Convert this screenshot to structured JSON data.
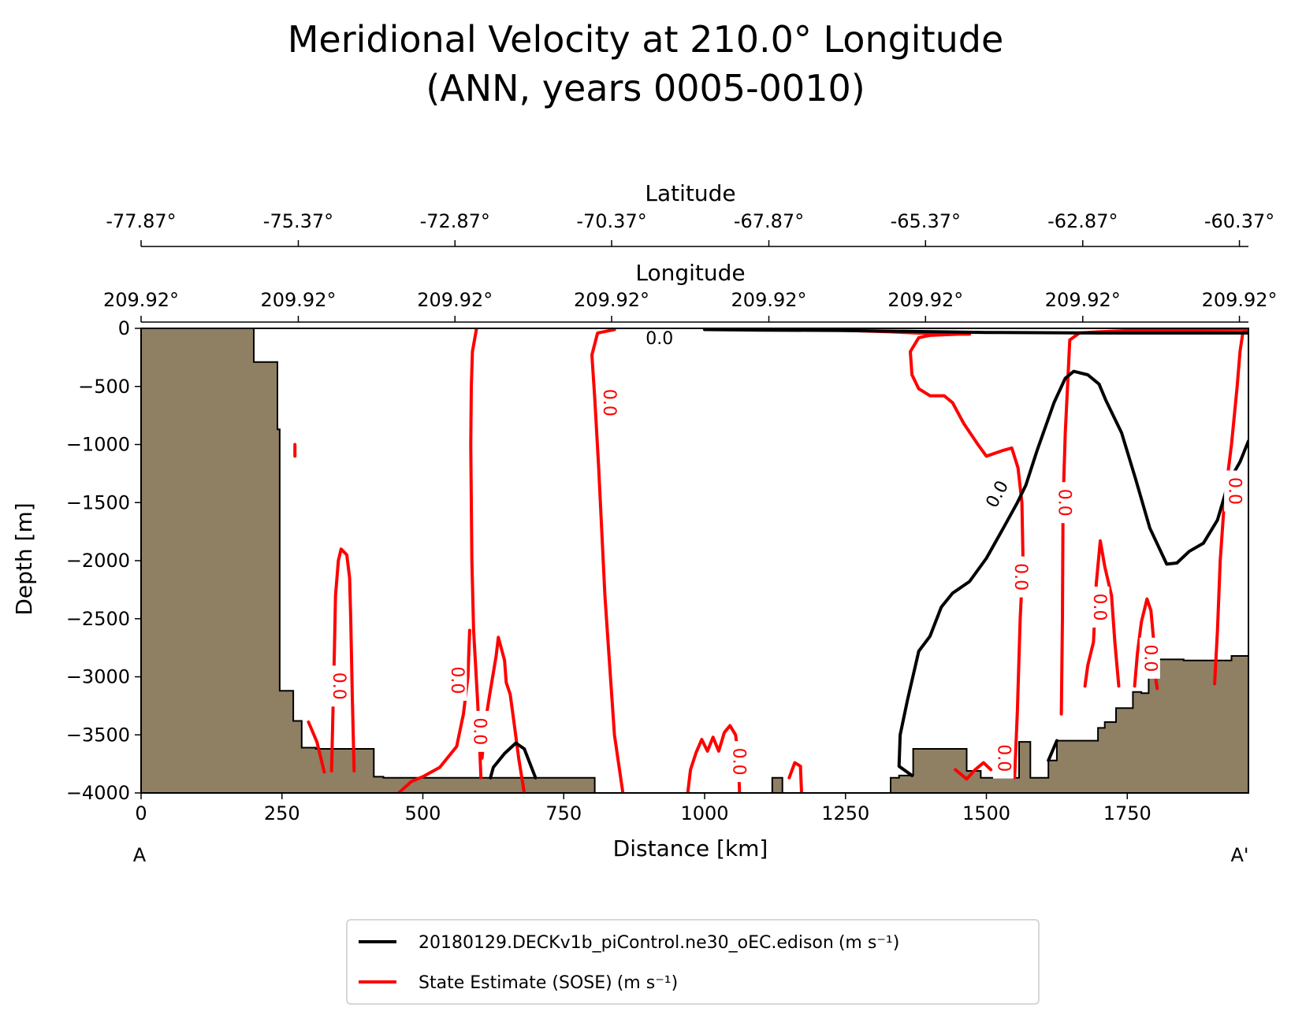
{
  "chart_data": {
    "type": "contour",
    "title_line1": "Meridional Velocity at 210.0° Longitude",
    "title_line2": "(ANN, years 0005-0010)",
    "xlabel": "Distance [km]",
    "ylabel": "Depth [m]",
    "xlim": [
      0,
      1965
    ],
    "ylim": [
      -4000,
      0
    ],
    "x_ticks": [
      0,
      250,
      500,
      750,
      1000,
      1250,
      1500,
      1750
    ],
    "y_ticks": [
      0,
      -500,
      -1000,
      -1500,
      -2000,
      -2500,
      -3000,
      -3500,
      -4000
    ],
    "y_tick_labels": [
      "0",
      "−500",
      "−1000",
      "−1500",
      "−2000",
      "−2500",
      "−3000",
      "−3500",
      "−4000"
    ],
    "section_start": "A",
    "section_end": "A'",
    "latitude_axis": {
      "label": "Latitude",
      "ticks": [
        "-77.87°",
        "-75.37°",
        "-72.87°",
        "-70.37°",
        "-67.87°",
        "-65.37°",
        "-62.87°",
        "-60.37°"
      ],
      "positions_km": [
        0,
        279,
        557,
        835,
        1114,
        1392,
        1671,
        1949
      ]
    },
    "longitude_axis": {
      "label": "Longitude",
      "ticks": [
        "209.92°",
        "209.92°",
        "209.92°",
        "209.92°",
        "209.92°",
        "209.92°",
        "209.92°",
        "209.92°"
      ],
      "positions_km": [
        0,
        279,
        557,
        835,
        1114,
        1392,
        1671,
        1949
      ]
    },
    "contour_level": "0.0",
    "contour_label": "0.0",
    "series": [
      {
        "name": "20180129.DECKv1b_piControl.ne30_oEC.edison",
        "units": "(m s⁻¹)",
        "color": "#000000"
      },
      {
        "name": "State Estimate (SOSE)",
        "units": "(m s⁻¹)",
        "color": "#ff0000"
      }
    ],
    "legend_position": "bottom-center",
    "bathymetry": {
      "color": "#8f7f63",
      "points": [
        [
          0,
          0
        ],
        [
          200,
          0
        ],
        [
          200,
          -290
        ],
        [
          242,
          -290
        ],
        [
          242,
          -870
        ],
        [
          246,
          -870
        ],
        [
          246,
          -3120
        ],
        [
          270,
          -3120
        ],
        [
          270,
          -3380
        ],
        [
          285,
          -3380
        ],
        [
          285,
          -3610
        ],
        [
          310,
          -3610
        ],
        [
          310,
          -3620
        ],
        [
          413,
          -3620
        ],
        [
          413,
          -3860
        ],
        [
          430,
          -3860
        ],
        [
          430,
          -3870
        ],
        [
          805,
          -3870
        ],
        [
          805,
          -4000
        ],
        [
          1120,
          -4000
        ],
        [
          1120,
          -3870
        ],
        [
          1138,
          -3870
        ],
        [
          1138,
          -4000
        ],
        [
          1330,
          -4000
        ],
        [
          1330,
          -3870
        ],
        [
          1345,
          -3870
        ],
        [
          1345,
          -3850
        ],
        [
          1370,
          -3850
        ],
        [
          1370,
          -3620
        ],
        [
          1465,
          -3620
        ],
        [
          1465,
          -3810
        ],
        [
          1490,
          -3810
        ],
        [
          1490,
          -3870
        ],
        [
          1558,
          -3870
        ],
        [
          1558,
          -3560
        ],
        [
          1578,
          -3560
        ],
        [
          1578,
          -3870
        ],
        [
          1610,
          -3870
        ],
        [
          1610,
          -3720
        ],
        [
          1625,
          -3720
        ],
        [
          1625,
          -3550
        ],
        [
          1698,
          -3550
        ],
        [
          1698,
          -3440
        ],
        [
          1710,
          -3440
        ],
        [
          1710,
          -3390
        ],
        [
          1730,
          -3390
        ],
        [
          1730,
          -3270
        ],
        [
          1760,
          -3270
        ],
        [
          1760,
          -3130
        ],
        [
          1775,
          -3130
        ],
        [
          1775,
          -3140
        ],
        [
          1788,
          -3140
        ],
        [
          1788,
          -2910
        ],
        [
          1800,
          -2910
        ],
        [
          1800,
          -2850
        ],
        [
          1850,
          -2850
        ],
        [
          1850,
          -2860
        ],
        [
          1935,
          -2860
        ],
        [
          1935,
          -2820
        ],
        [
          1965,
          -2820
        ],
        [
          1965,
          -4000
        ],
        [
          0,
          -4000
        ]
      ]
    },
    "black_contours": [
      [
        [
          1000,
          -10
        ],
        [
          1100,
          -15
        ],
        [
          1250,
          -18
        ],
        [
          1500,
          -35
        ],
        [
          1700,
          -40
        ],
        [
          1965,
          -40
        ]
      ],
      [
        [
          620,
          -3870
        ],
        [
          625,
          -3780
        ],
        [
          645,
          -3660
        ],
        [
          665,
          -3570
        ],
        [
          680,
          -3620
        ],
        [
          700,
          -3870
        ]
      ],
      [
        [
          1368,
          -3850
        ],
        [
          1345,
          -3770
        ],
        [
          1347,
          -3500
        ],
        [
          1360,
          -3200
        ],
        [
          1380,
          -2780
        ],
        [
          1400,
          -2650
        ],
        [
          1420,
          -2400
        ],
        [
          1440,
          -2280
        ],
        [
          1470,
          -2180
        ],
        [
          1500,
          -1980
        ],
        [
          1530,
          -1720
        ],
        [
          1555,
          -1500
        ],
        [
          1570,
          -1350
        ],
        [
          1590,
          -1050
        ],
        [
          1620,
          -640
        ],
        [
          1640,
          -430
        ],
        [
          1655,
          -370
        ],
        [
          1680,
          -400
        ],
        [
          1700,
          -480
        ],
        [
          1712,
          -620
        ],
        [
          1740,
          -900
        ],
        [
          1765,
          -1300
        ],
        [
          1790,
          -1720
        ],
        [
          1820,
          -2030
        ],
        [
          1838,
          -2020
        ],
        [
          1860,
          -1920
        ],
        [
          1885,
          -1850
        ],
        [
          1910,
          -1650
        ],
        [
          1930,
          -1320
        ],
        [
          1950,
          -1150
        ],
        [
          1965,
          -970
        ]
      ],
      [
        [
          1625,
          -3550
        ],
        [
          1610,
          -3720
        ]
      ]
    ],
    "red_contours": [
      [
        [
          603,
          -3870
        ],
        [
          600,
          -3500
        ],
        [
          597,
          -3200
        ],
        [
          590,
          -2600
        ],
        [
          587,
          -2000
        ],
        [
          585,
          -1000
        ],
        [
          586,
          -500
        ],
        [
          588,
          -200
        ],
        [
          595,
          -10
        ]
      ],
      [
        [
          840,
          -10
        ],
        [
          810,
          -40
        ],
        [
          800,
          -230
        ],
        [
          805,
          -600
        ],
        [
          812,
          -1200
        ],
        [
          818,
          -1800
        ],
        [
          823,
          -2300
        ],
        [
          830,
          -2800
        ],
        [
          840,
          -3500
        ],
        [
          855,
          -4000
        ]
      ],
      [
        [
          457,
          -4000
        ],
        [
          480,
          -3900
        ],
        [
          500,
          -3860
        ],
        [
          530,
          -3780
        ],
        [
          560,
          -3600
        ],
        [
          572,
          -3320
        ],
        [
          580,
          -3000
        ],
        [
          583,
          -2600
        ]
      ],
      [
        [
          605,
          -3700
        ],
        [
          610,
          -3420
        ],
        [
          618,
          -3170
        ],
        [
          630,
          -2820
        ],
        [
          634,
          -2660
        ],
        [
          645,
          -2860
        ],
        [
          648,
          -3050
        ],
        [
          655,
          -3150
        ],
        [
          662,
          -3400
        ],
        [
          670,
          -3700
        ],
        [
          680,
          -4000
        ]
      ],
      [
        [
          338,
          -3810
        ],
        [
          340,
          -3400
        ],
        [
          343,
          -2800
        ],
        [
          345,
          -2300
        ],
        [
          350,
          -2000
        ],
        [
          355,
          -1900
        ],
        [
          365,
          -1950
        ],
        [
          370,
          -2150
        ],
        [
          372,
          -2500
        ],
        [
          375,
          -3200
        ],
        [
          378,
          -3810
        ]
      ],
      [
        [
          970,
          -4000
        ],
        [
          975,
          -3800
        ],
        [
          985,
          -3650
        ],
        [
          995,
          -3540
        ],
        [
          1005,
          -3640
        ],
        [
          1015,
          -3520
        ],
        [
          1025,
          -3640
        ],
        [
          1035,
          -3480
        ],
        [
          1045,
          -3420
        ],
        [
          1055,
          -3500
        ],
        [
          1060,
          -3700
        ],
        [
          1062,
          -4000
        ]
      ],
      [
        [
          1150,
          -3870
        ],
        [
          1160,
          -3740
        ],
        [
          1170,
          -3770
        ],
        [
          1172,
          -4000
        ]
      ],
      [
        [
          1550,
          -3870
        ],
        [
          1555,
          -3300
        ],
        [
          1560,
          -2500
        ],
        [
          1565,
          -2000
        ],
        [
          1563,
          -1500
        ],
        [
          1556,
          -1200
        ],
        [
          1545,
          -1030
        ],
        [
          1530,
          -1050
        ],
        [
          1500,
          -1100
        ],
        [
          1485,
          -1000
        ],
        [
          1460,
          -820
        ],
        [
          1440,
          -640
        ],
        [
          1425,
          -580
        ],
        [
          1400,
          -580
        ],
        [
          1380,
          -520
        ],
        [
          1368,
          -400
        ],
        [
          1365,
          -200
        ],
        [
          1380,
          -80
        ],
        [
          1400,
          -60
        ],
        [
          1450,
          -50
        ],
        [
          1470,
          -50
        ],
        [
          1400,
          -45
        ],
        [
          1330,
          -30
        ],
        [
          1200,
          -10
        ]
      ],
      [
        [
          1633,
          -3320
        ],
        [
          1635,
          -2500
        ],
        [
          1636,
          -1500
        ],
        [
          1640,
          -900
        ],
        [
          1645,
          -400
        ],
        [
          1648,
          -100
        ],
        [
          1665,
          -40
        ],
        [
          1700,
          -30
        ],
        [
          1750,
          -20
        ],
        [
          1965,
          -10
        ]
      ],
      [
        [
          1675,
          -3080
        ],
        [
          1680,
          -2900
        ],
        [
          1690,
          -2700
        ],
        [
          1695,
          -2200
        ],
        [
          1702,
          -1830
        ],
        [
          1710,
          -2050
        ],
        [
          1722,
          -2300
        ],
        [
          1728,
          -2700
        ],
        [
          1735,
          -3080
        ]
      ],
      [
        [
          1763,
          -3080
        ],
        [
          1768,
          -2800
        ],
        [
          1775,
          -2530
        ],
        [
          1785,
          -2330
        ],
        [
          1792,
          -2430
        ],
        [
          1797,
          -2700
        ],
        [
          1800,
          -3000
        ],
        [
          1803,
          -3100
        ]
      ],
      [
        [
          1905,
          -3060
        ],
        [
          1910,
          -2600
        ],
        [
          1915,
          -2000
        ],
        [
          1922,
          -1500
        ],
        [
          1935,
          -1000
        ],
        [
          1945,
          -500
        ],
        [
          1950,
          -200
        ],
        [
          1955,
          -40
        ],
        [
          1965,
          -20
        ]
      ],
      [
        [
          273,
          -1000
        ],
        [
          273,
          -1100
        ]
      ],
      [
        [
          297,
          -3390
        ],
        [
          312,
          -3560
        ],
        [
          325,
          -3820
        ]
      ],
      [
        [
          1445,
          -3800
        ],
        [
          1465,
          -3880
        ],
        [
          1480,
          -3800
        ],
        [
          1495,
          -3740
        ],
        [
          1508,
          -3800
        ]
      ]
    ],
    "red_labels": [
      {
        "x": 830,
        "y": -640
      },
      {
        "x": 350,
        "y": -3080
      },
      {
        "x": 560,
        "y": -3030
      },
      {
        "x": 600,
        "y": -3470
      },
      {
        "x": 1060,
        "y": -3730
      },
      {
        "x": 1560,
        "y": -2140
      },
      {
        "x": 1638,
        "y": -1500
      },
      {
        "x": 1700,
        "y": -2400
      },
      {
        "x": 1790,
        "y": -2840
      },
      {
        "x": 1940,
        "y": -1400
      },
      {
        "x": 1530,
        "y": -3700
      }
    ],
    "black_labels": [
      {
        "x": 1520,
        "y": -1430,
        "angle": -62
      },
      {
        "x": 920,
        "y": -10,
        "angle": 0
      }
    ]
  }
}
